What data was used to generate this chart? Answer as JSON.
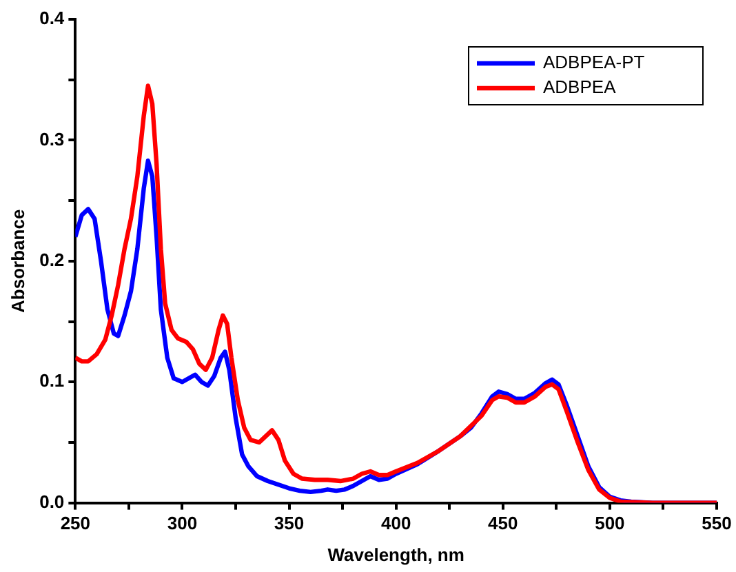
{
  "chart_data": {
    "type": "line",
    "xlabel": "Wavelength, nm",
    "ylabel": "Absorbance",
    "xlim": [
      250,
      550
    ],
    "xticks": [
      250,
      {
        "value": 275,
        "label": null
      },
      300,
      {
        "value": 325,
        "label": null
      },
      350,
      {
        "value": 375,
        "label": null
      },
      400,
      {
        "value": 425,
        "label": null
      },
      450,
      {
        "value": 475,
        "label": null
      },
      500,
      {
        "value": 525,
        "label": null
      },
      550
    ],
    "ylim": [
      0,
      0.4
    ],
    "yticks": [
      {
        "value": 0,
        "label": "0.0"
      },
      {
        "value": 0.05,
        "label": null
      },
      0.1,
      {
        "value": 0.15,
        "label": null
      },
      0.2,
      {
        "value": 0.25,
        "label": null
      },
      0.3,
      {
        "value": 0.35,
        "label": null
      },
      0.4
    ],
    "grid": false,
    "legend": "top right",
    "marker": "none",
    "line_style": "solid",
    "series": [
      {
        "name": "ADBPEA-PT",
        "color": "#0000ff",
        "x": [
          250,
          253,
          256,
          259,
          262,
          265,
          268,
          270,
          273,
          276,
          279,
          282,
          284,
          286,
          288,
          290,
          293,
          296,
          300,
          303,
          306,
          309,
          312,
          315,
          318,
          320,
          322,
          325,
          328,
          331,
          335,
          340,
          345,
          350,
          355,
          360,
          365,
          368,
          372,
          376,
          380,
          384,
          388,
          392,
          396,
          400,
          410,
          420,
          430,
          435,
          440,
          445,
          448,
          452,
          456,
          460,
          465,
          470,
          473,
          476,
          480,
          485,
          490,
          495,
          500,
          505,
          510,
          520,
          550
        ],
        "values": [
          0.22,
          0.238,
          0.243,
          0.235,
          0.2,
          0.16,
          0.14,
          0.138,
          0.155,
          0.175,
          0.21,
          0.26,
          0.283,
          0.27,
          0.22,
          0.16,
          0.12,
          0.103,
          0.1,
          0.103,
          0.106,
          0.1,
          0.097,
          0.105,
          0.12,
          0.125,
          0.11,
          0.07,
          0.04,
          0.03,
          0.022,
          0.018,
          0.015,
          0.012,
          0.01,
          0.009,
          0.01,
          0.011,
          0.01,
          0.011,
          0.014,
          0.018,
          0.022,
          0.019,
          0.02,
          0.024,
          0.032,
          0.043,
          0.055,
          0.062,
          0.074,
          0.088,
          0.092,
          0.09,
          0.086,
          0.086,
          0.091,
          0.099,
          0.102,
          0.098,
          0.08,
          0.055,
          0.03,
          0.013,
          0.005,
          0.002,
          0.001,
          0,
          0
        ]
      },
      {
        "name": "ADBPEA",
        "color": "#ff0000",
        "x": [
          250,
          253,
          256,
          260,
          264,
          267,
          270,
          273,
          276,
          279,
          282,
          284,
          286,
          288,
          290,
          292,
          295,
          298,
          302,
          305,
          308,
          311,
          314,
          317,
          319,
          321,
          323,
          326,
          329,
          332,
          336,
          339,
          342,
          345,
          348,
          352,
          356,
          362,
          368,
          374,
          380,
          384,
          388,
          392,
          396,
          400,
          410,
          420,
          430,
          440,
          445,
          448,
          452,
          456,
          460,
          465,
          470,
          473,
          476,
          480,
          485,
          490,
          495,
          500,
          505,
          520,
          550
        ],
        "values": [
          0.12,
          0.117,
          0.117,
          0.123,
          0.135,
          0.155,
          0.18,
          0.21,
          0.235,
          0.27,
          0.32,
          0.345,
          0.33,
          0.28,
          0.21,
          0.165,
          0.143,
          0.136,
          0.133,
          0.127,
          0.115,
          0.11,
          0.12,
          0.143,
          0.155,
          0.148,
          0.12,
          0.085,
          0.062,
          0.052,
          0.05,
          0.055,
          0.06,
          0.052,
          0.035,
          0.024,
          0.02,
          0.019,
          0.019,
          0.018,
          0.02,
          0.024,
          0.026,
          0.023,
          0.023,
          0.026,
          0.033,
          0.043,
          0.055,
          0.072,
          0.085,
          0.088,
          0.087,
          0.083,
          0.083,
          0.088,
          0.096,
          0.098,
          0.094,
          0.075,
          0.05,
          0.027,
          0.011,
          0.004,
          0.001,
          0,
          0
        ]
      }
    ]
  }
}
